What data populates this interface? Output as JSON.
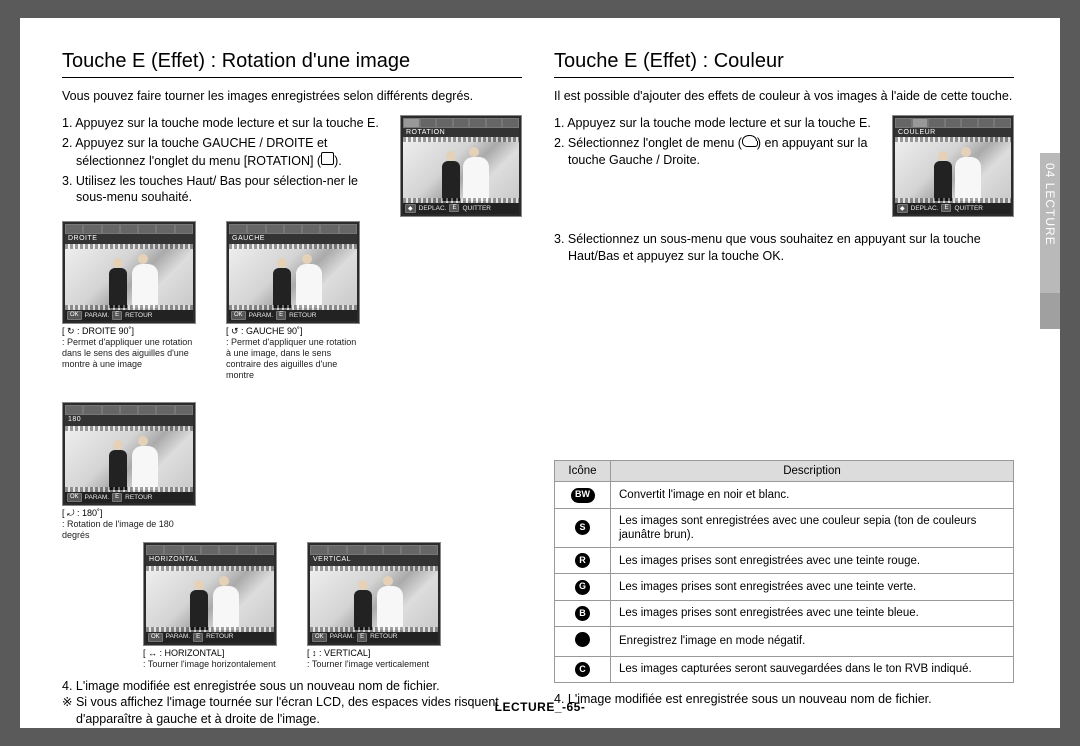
{
  "left": {
    "heading": "Touche E (Effet) : Rotation d'une image",
    "intro": "Vous pouvez faire tourner les images enregistrées selon différents degrés.",
    "step1": "1. Appuyez sur la touche mode lecture et sur la touche E.",
    "step2": "2. Appuyez sur la touche GAUCHE / DROITE et sélectionnez l'onglet du menu [ROTATION] (",
    "step2b": ").",
    "step3": "3. Utilisez les touches Haut/ Bas pour sélection-ner le sous-menu souhaité.",
    "lcd": {
      "title": "ROTATION",
      "foot_move": "DEPLAC.",
      "foot_e": "E",
      "foot_exit": "QUITTER"
    },
    "thumbs": [
      {
        "lcd_title": "DROITE",
        "cap_title": "[ ↻ : DROITE 90˚]",
        "cap_desc": ": Permet d'appliquer une rotation dans le sens des aiguilles d'une montre à une image",
        "foot_ok": "OK",
        "foot_set": "PARAM.",
        "foot_e": "E",
        "foot_ret": "RETOUR"
      },
      {
        "lcd_title": "GAUCHE",
        "cap_title": "[ ↺ : GAUCHE 90˚]",
        "cap_desc": ": Permet d'appliquer une rotation à une image, dans le sens contraire des aiguilles d'une montre",
        "foot_ok": "OK",
        "foot_set": "PARAM.",
        "foot_e": "E",
        "foot_ret": "RETOUR"
      },
      {
        "lcd_title": "180",
        "cap_title": "[ ⤾ : 180˚]",
        "cap_desc": ": Rotation de l'image de 180 degrés",
        "foot_ok": "OK",
        "foot_set": "PARAM.",
        "foot_e": "E",
        "foot_ret": "RETOUR"
      },
      {
        "lcd_title": "HORIZONTAL",
        "cap_title": "[ ↔ : HORIZONTAL]",
        "cap_desc": ": Tourner l'image horizontalement",
        "foot_ok": "OK",
        "foot_set": "PARAM.",
        "foot_e": "E",
        "foot_ret": "RETOUR"
      },
      {
        "lcd_title": "VERTICAL",
        "cap_title": "[ ↕ : VERTICAL]",
        "cap_desc": ": Tourner l'image verticalement",
        "foot_ok": "OK",
        "foot_set": "PARAM.",
        "foot_e": "E",
        "foot_ret": "RETOUR"
      }
    ],
    "note4": "4. L'image modifiée est enregistrée sous un nouveau nom de fichier.",
    "noteStar": "※ Si vous affichez l'image tournée sur l'écran LCD, des espaces vides risquent d'apparaître à gauche et à droite de l'image."
  },
  "right": {
    "heading": "Touche E (Effet) : Couleur",
    "intro": "Il est possible d'ajouter des effets de couleur à vos images à l'aide de cette touche.",
    "step1": "1. Appuyez sur la touche mode lecture et sur la touche E.",
    "step2a": "2. Sélectionnez l'onglet de menu (",
    "step2b": ") en appuyant sur la touche Gauche / Droite.",
    "step3": "3. Sélectionnez un sous-menu que vous souhaitez en appuyant sur la touche Haut/Bas et appuyez sur la touche OK.",
    "lcd": {
      "title": "COULEUR",
      "foot_move": "DEPLAC.",
      "foot_e": "E",
      "foot_exit": "QUITTER"
    },
    "table": {
      "col_icon": "Icône",
      "col_desc": "Description",
      "rows": [
        {
          "icon": "BW",
          "desc": "Convertit l'image en noir et blanc."
        },
        {
          "icon": "S",
          "desc": "Les images sont enregistrées avec une couleur sepia (ton de couleurs jaunâtre brun)."
        },
        {
          "icon": "R",
          "desc": "Les images prises sont enregistrées avec une teinte rouge."
        },
        {
          "icon": "G",
          "desc": "Les images prises sont enregistrées avec une teinte verte."
        },
        {
          "icon": "B",
          "desc": "Les images prises sont enregistrées avec une teinte bleue."
        },
        {
          "icon": "HALF",
          "desc": "Enregistrez l'image en mode négatif."
        },
        {
          "icon": "C",
          "desc": "Les images capturées seront sauvegardées dans le ton RVB indiqué."
        }
      ]
    },
    "note4": "4. L'image modifiée est enregistrée sous un nouveau nom de fichier."
  },
  "sidetab": "04 LECTURE",
  "footer": "LECTURE_-65-"
}
